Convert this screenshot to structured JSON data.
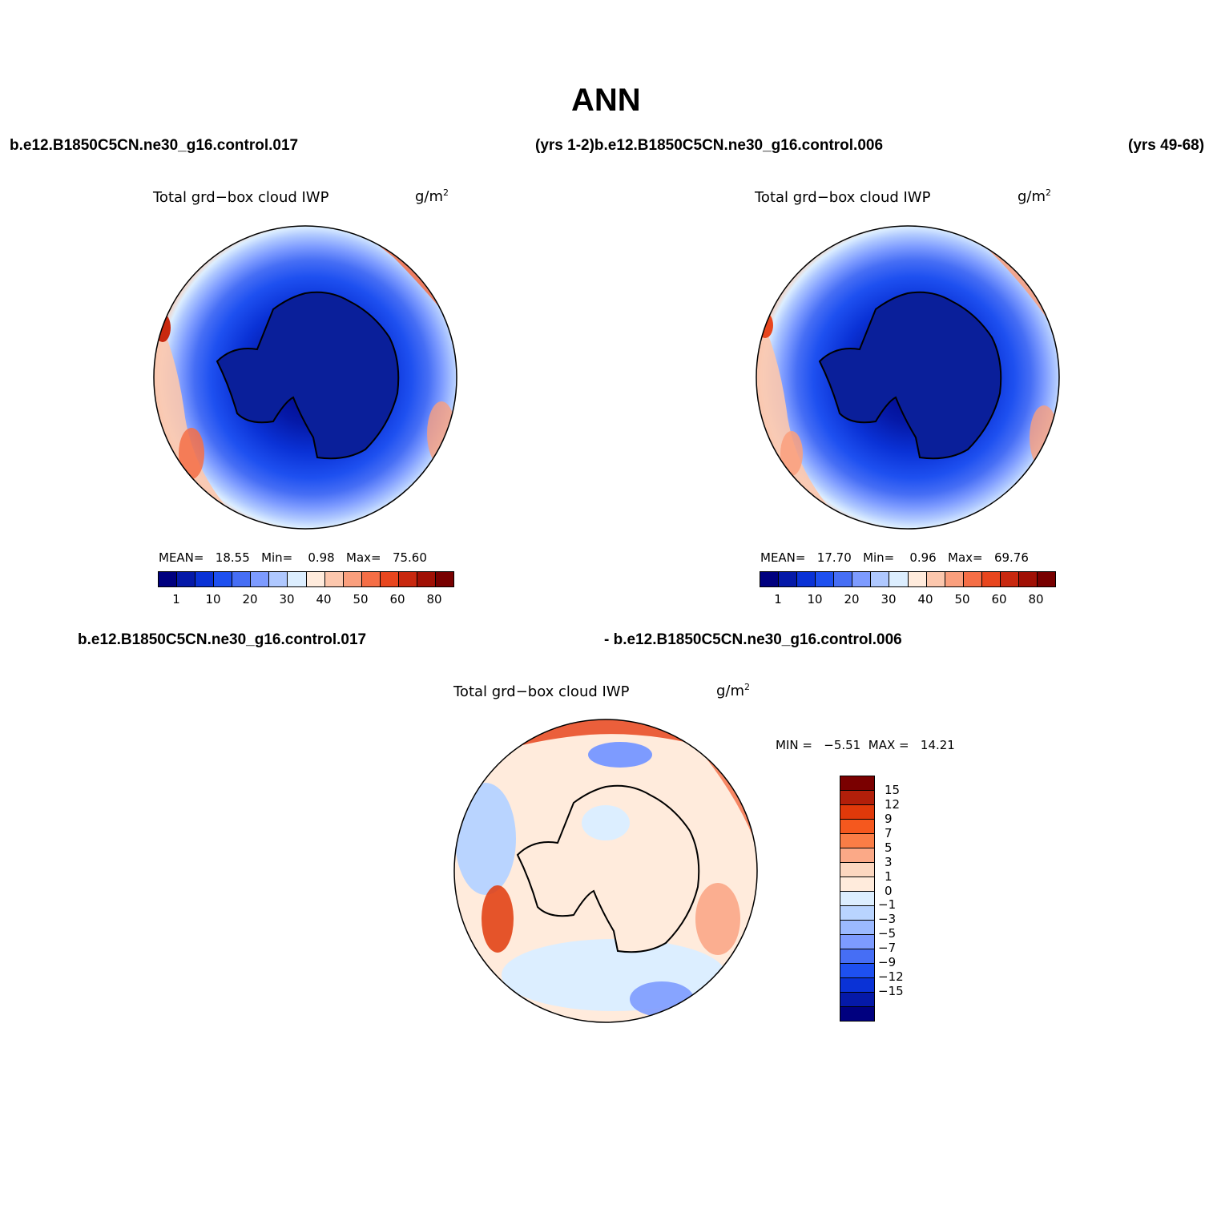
{
  "title": "ANN",
  "header": {
    "case_top_left": "b.e12.B1850C5CN.ne30_g16.control.017",
    "case_top_mid": "(yrs 1-2)b.e12.B1850C5CN.ne30_g16.control.006",
    "case_top_right": "(yrs 49-68)",
    "case_diff_left": "b.e12.B1850C5CN.ne30_g16.control.017",
    "case_diff_right": "- b.e12.B1850C5CN.ne30_g16.control.006"
  },
  "panels": {
    "left": {
      "variable": "Total grd−box cloud IWP",
      "units_base": "g/m",
      "units_exp": "2",
      "stats": {
        "mean_label": "MEAN=",
        "mean": "18.55",
        "min_label": "Min=",
        "min": "0.98",
        "max_label": "Max=",
        "max": "75.60"
      }
    },
    "right": {
      "variable": "Total grd−box cloud IWP",
      "units_base": "g/m",
      "units_exp": "2",
      "stats": {
        "mean_label": "MEAN=",
        "mean": "17.70",
        "min_label": "Min=",
        "min": "0.96",
        "max_label": "Max=",
        "max": "69.76"
      }
    },
    "diff": {
      "variable": "Total grd−box cloud IWP",
      "units_base": "g/m",
      "units_exp": "2",
      "stats": {
        "min_label": "MIN =",
        "min": "−5.51",
        "max_label": "MAX =",
        "max": "14.21"
      }
    }
  },
  "colorbar_main": {
    "colors": [
      "#00007f",
      "#0519a8",
      "#0a32d6",
      "#1e50f0",
      "#466ef5",
      "#7d9bff",
      "#afc8ff",
      "#dceeff",
      "#ffebdc",
      "#fcc7ad",
      "#fa9f7d",
      "#f56e46",
      "#e8461e",
      "#c8280f",
      "#a01005",
      "#780000"
    ],
    "labels": [
      "1",
      "10",
      "20",
      "30",
      "40",
      "50",
      "60",
      "80"
    ]
  },
  "colorbar_diff": {
    "colors": [
      "#7a0000",
      "#b21f0a",
      "#e0390a",
      "#f5581e",
      "#fa7d46",
      "#fba987",
      "#fcd7c0",
      "#ffebdc",
      "#dceeff",
      "#b9d4ff",
      "#9bb9ff",
      "#7d9bff",
      "#466ef5",
      "#1e50f0",
      "#0a32d6",
      "#0519a8",
      "#00007f"
    ],
    "labels": [
      "15",
      "12",
      "9",
      "7",
      "5",
      "3",
      "1",
      "0",
      "−1",
      "−3",
      "−5",
      "−7",
      "−9",
      "−12",
      "−15"
    ]
  }
}
